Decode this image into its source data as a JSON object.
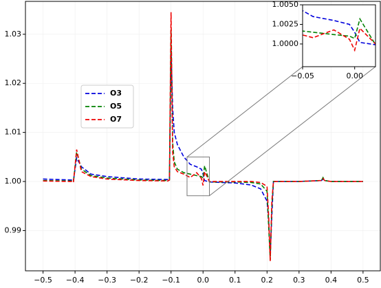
{
  "chart_data": {
    "type": "line",
    "x": [
      -0.5,
      -0.41,
      -0.405,
      -0.395,
      -0.38,
      -0.35,
      -0.3,
      -0.2,
      -0.11,
      -0.105,
      -0.1,
      -0.095,
      -0.09,
      -0.08,
      -0.06,
      -0.04,
      -0.02,
      -0.005,
      0.0,
      0.005,
      0.02,
      0.1,
      0.15,
      0.18,
      0.2,
      0.205,
      0.21,
      0.215,
      0.22,
      0.3,
      0.37,
      0.375,
      0.38,
      0.4,
      0.5
    ],
    "series": [
      {
        "name": "O3",
        "color": "#0000dd",
        "values": [
          1.0005,
          1.0003,
          1.0002,
          1.0048,
          1.003,
          1.0015,
          1.001,
          1.0005,
          1.0004,
          1.0004,
          1.027,
          1.015,
          1.01,
          1.0075,
          1.005,
          1.0035,
          1.003,
          1.0025,
          1.0015,
          1.0002,
          0.9999,
          0.9997,
          0.9993,
          0.9985,
          0.996,
          0.992,
          0.985,
          0.993,
          1.0,
          1.0,
          1.0002,
          1.0005,
          1.0002,
          1.0,
          1.0
        ]
      },
      {
        "name": "O5",
        "color": "#008000",
        "values": [
          1.0002,
          1.0001,
          1.0,
          1.006,
          1.0025,
          1.0012,
          1.0007,
          1.0003,
          1.0002,
          1.0003,
          1.031,
          1.008,
          1.004,
          1.0025,
          1.0018,
          1.0015,
          1.0012,
          1.001,
          1.0007,
          1.0032,
          0.9999,
          0.9999,
          0.9998,
          0.9995,
          0.998,
          0.991,
          0.984,
          0.995,
          1.0,
          1.0,
          1.0002,
          1.0008,
          1.0002,
          1.0,
          1.0
        ]
      },
      {
        "name": "O7",
        "color": "#ee0000",
        "values": [
          1.0001,
          1.0,
          0.9998,
          1.0065,
          1.002,
          1.001,
          1.0005,
          1.0002,
          1.0001,
          1.0003,
          1.0345,
          1.006,
          1.003,
          1.002,
          1.0015,
          1.0008,
          1.0018,
          1.0006,
          0.9992,
          1.002,
          1.0,
          1.0,
          1.0,
          0.9998,
          0.999,
          0.993,
          0.9838,
          0.996,
          1.0,
          1.0,
          1.0002,
          1.0006,
          1.0002,
          1.0,
          1.0
        ]
      }
    ],
    "xlim": [
      -0.555,
      0.554
    ],
    "ylim": [
      0.9818,
      1.0367
    ],
    "xticks": [
      {
        "value": -0.5,
        "label": "−0.5"
      },
      {
        "value": -0.4,
        "label": "−0.4"
      },
      {
        "value": -0.3,
        "label": "−0.3"
      },
      {
        "value": -0.2,
        "label": "−0.2"
      },
      {
        "value": -0.1,
        "label": "−0.1"
      },
      {
        "value": 0.0,
        "label": "0.0"
      },
      0.1,
      0.2,
      0.3,
      0.4,
      0.5
    ],
    "yticks": [
      0.99,
      {
        "value": 1.0,
        "label": "1.00"
      },
      1.01,
      1.02,
      1.03
    ],
    "grid": true,
    "legend": "upper left",
    "inset": {
      "xlim": [
        -0.05,
        0.02
      ],
      "ylim": [
        0.9971,
        1.005
      ],
      "xticks": [
        {
          "value": -0.05,
          "label": "−0.05"
        },
        {
          "value": 0.0,
          "label": "0.00"
        }
      ],
      "yticks": [
        {
          "value": 1.0,
          "label": "1.0000"
        },
        {
          "value": 1.0025,
          "label": "1.0025"
        },
        {
          "value": 1.005,
          "label": "1.0050"
        }
      ]
    }
  }
}
